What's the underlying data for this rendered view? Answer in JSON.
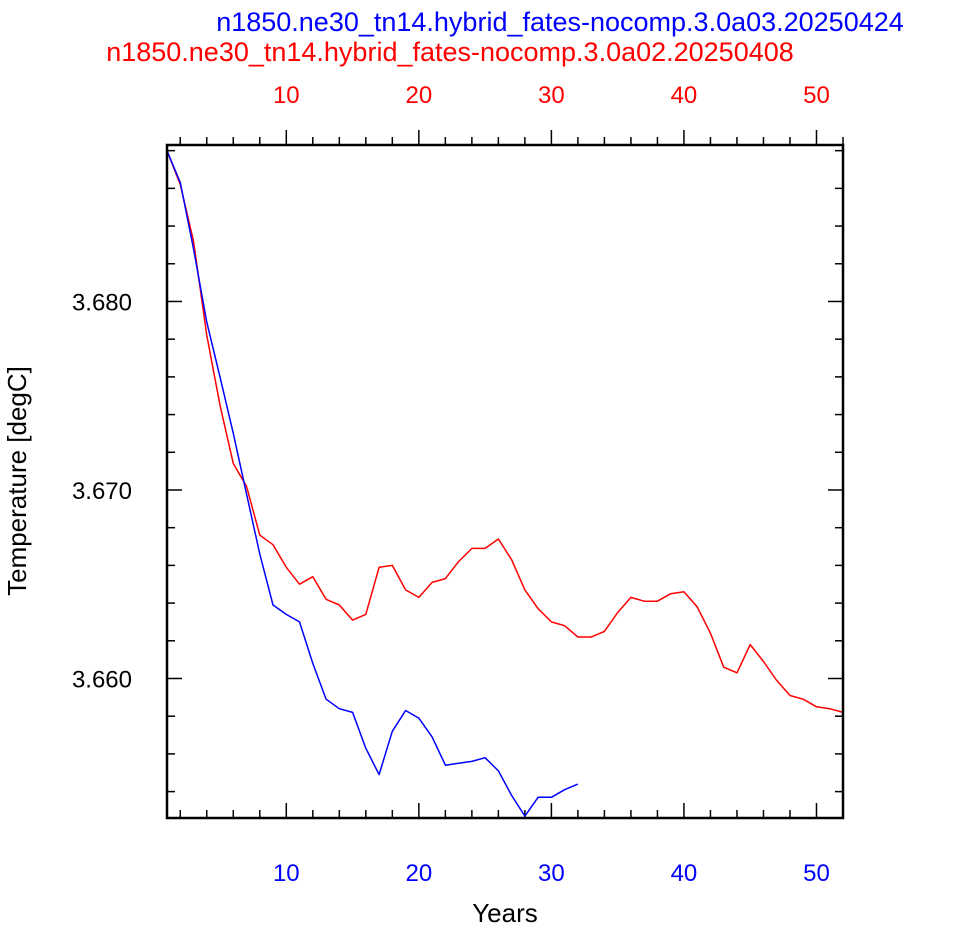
{
  "chart_data": {
    "type": "line",
    "title_lines": [
      {
        "text": "n1850.ne30_tn14.hybrid_fates-nocomp.3.0a03.20250424",
        "color": "#0000ff"
      },
      {
        "text": "n1850.ne30_tn14.hybrid_fates-nocomp.3.0a02.20250408",
        "color": "#ff0000"
      }
    ],
    "xlabel": "Years",
    "ylabel": "Temperature [degC]",
    "xlim": [
      1,
      52
    ],
    "ylim": [
      3.6526,
      3.6883
    ],
    "x_ticks": [
      10,
      20,
      30,
      40,
      50
    ],
    "y_ticks": [
      3.66,
      3.67,
      3.68
    ],
    "y_tick_labels": [
      "3.660",
      "3.670",
      "3.680"
    ],
    "bottom_axis_color": "#0000ff",
    "top_axis_color": "#ff0000",
    "series": [
      {
        "name": "n1850.ne30_tn14.hybrid_fates-nocomp.3.0a02.20250408",
        "color": "#ff0000",
        "x": [
          1,
          2,
          3,
          4,
          5,
          6,
          7,
          8,
          9,
          10,
          11,
          12,
          13,
          14,
          15,
          16,
          17,
          18,
          19,
          20,
          21,
          22,
          23,
          24,
          25,
          26,
          27,
          28,
          29,
          30,
          31,
          32,
          33,
          34,
          35,
          36,
          37,
          38,
          39,
          40,
          41,
          42,
          43,
          44,
          45,
          46,
          47,
          48,
          49,
          50,
          51,
          52
        ],
        "y": [
          3.688,
          3.6862,
          3.6832,
          3.6782,
          3.6745,
          3.6714,
          3.6702,
          3.6676,
          3.6671,
          3.6659,
          3.665,
          3.6654,
          3.6642,
          3.6639,
          3.6631,
          3.6634,
          3.6659,
          3.666,
          3.6647,
          3.6643,
          3.6651,
          3.6653,
          3.6662,
          3.6669,
          3.6669,
          3.6674,
          3.6663,
          3.6647,
          3.6637,
          3.663,
          3.6628,
          3.6622,
          3.6622,
          3.6625,
          3.6635,
          3.6643,
          3.6641,
          3.6641,
          3.6645,
          3.6646,
          3.6638,
          3.6624,
          3.6606,
          3.6603,
          3.6618,
          3.6609,
          3.6599,
          3.6591,
          3.6589,
          3.6585,
          3.6584,
          3.6582
        ]
      },
      {
        "name": "n1850.ne30_tn14.hybrid_fates-nocomp.3.0a03.20250424",
        "color": "#0000ff",
        "x": [
          1,
          2,
          3,
          4,
          5,
          6,
          7,
          8,
          9,
          10,
          11,
          12,
          13,
          14,
          15,
          16,
          17,
          18,
          19,
          20,
          21,
          22,
          23,
          24,
          25,
          26,
          27,
          28,
          29,
          30,
          31,
          32
        ],
        "y": [
          3.688,
          3.6863,
          3.6828,
          3.6789,
          3.676,
          3.673,
          3.6698,
          3.6666,
          3.6639,
          3.6634,
          3.663,
          3.6608,
          3.6589,
          3.6584,
          3.6582,
          3.6563,
          3.6549,
          3.6572,
          3.6583,
          3.6579,
          3.6569,
          3.6554,
          3.6555,
          3.6556,
          3.6558,
          3.6551,
          3.6538,
          3.6527,
          3.6537,
          3.6537,
          3.6541,
          3.6544
        ]
      }
    ]
  }
}
